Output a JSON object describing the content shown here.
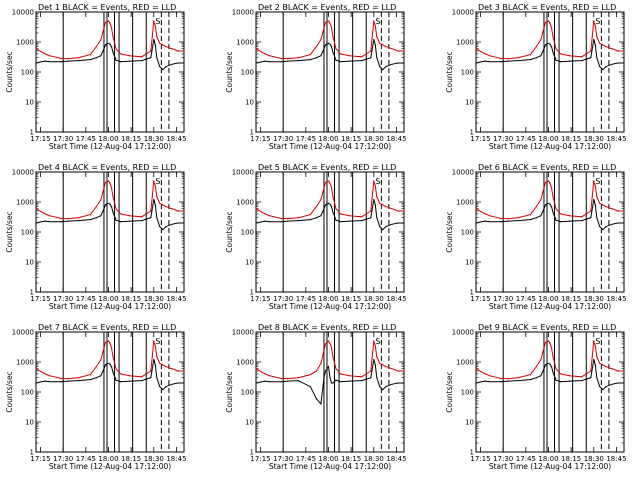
{
  "chart_data": {
    "type": "line",
    "layout": {
      "rows": 3,
      "cols": 3
    },
    "xlabel": "Start Time (12-Aug-04 17:12:00)",
    "ylabel": "Counts/sec",
    "yscale": "log",
    "ylim": [
      1,
      10000
    ],
    "xlim": [
      "17:12",
      "18:50"
    ],
    "x_tick_labels": [
      "17:15",
      "17:30",
      "17:45",
      "18:00",
      "18:15",
      "18:30",
      "18:45"
    ],
    "y_tick_labels": [
      "1",
      "10",
      "100",
      "1000",
      "10000"
    ],
    "y_tick_values": [
      1,
      10,
      100,
      1000,
      10000
    ],
    "legend_text": "BLACK = Events, RED = LLD",
    "colors": {
      "events": "#000000",
      "lld": "#d40000"
    },
    "solid_markers": [
      "17:30",
      "17:57",
      "17:59",
      "18:04",
      "18:07",
      "18:16",
      "18:25"
    ],
    "dashed_markers": [
      "18:35",
      "18:40"
    ],
    "shared_series_x": [
      "17:12",
      "17:18",
      "17:21",
      "17:29",
      "17:33",
      "17:40",
      "17:48",
      "17:52",
      "17:55",
      "17:57",
      "17:58",
      "18:00",
      "18:01",
      "18:02",
      "18:03",
      "18:05",
      "18:08",
      "18:14",
      "18:22",
      "18:28",
      "18:30",
      "18:31",
      "18:32",
      "18:34",
      "18:36",
      "18:38",
      "18:42",
      "18:46",
      "18:50"
    ],
    "panels": [
      {
        "title": "Det 1",
        "marker_letter": "S",
        "events": [
          200,
          230,
          220,
          220,
          230,
          240,
          260,
          300,
          350,
          600,
          800,
          900,
          850,
          700,
          450,
          250,
          220,
          230,
          240,
          300,
          1200,
          800,
          300,
          150,
          120,
          150,
          180,
          200,
          200
        ],
        "lld": [
          600,
          400,
          350,
          280,
          280,
          300,
          380,
          700,
          1200,
          3000,
          4500,
          5000,
          4200,
          3000,
          1500,
          600,
          400,
          350,
          320,
          500,
          5000,
          3500,
          1500,
          900,
          800,
          700,
          600,
          500,
          500
        ]
      },
      {
        "title": "Det 2",
        "marker_letter": "S",
        "events": [
          200,
          230,
          220,
          220,
          230,
          240,
          260,
          300,
          350,
          600,
          800,
          900,
          850,
          700,
          450,
          250,
          220,
          230,
          240,
          300,
          1200,
          800,
          300,
          150,
          120,
          150,
          180,
          200,
          200
        ],
        "lld": [
          600,
          400,
          350,
          280,
          280,
          300,
          380,
          700,
          1200,
          3000,
          4500,
          5000,
          4200,
          3000,
          1500,
          600,
          400,
          350,
          320,
          500,
          5000,
          3500,
          1500,
          900,
          800,
          700,
          600,
          500,
          500
        ]
      },
      {
        "title": "Det 3",
        "marker_letter": "S",
        "events": [
          200,
          230,
          220,
          220,
          230,
          240,
          260,
          300,
          350,
          600,
          800,
          900,
          850,
          700,
          450,
          250,
          220,
          230,
          240,
          300,
          1200,
          800,
          300,
          150,
          120,
          150,
          180,
          200,
          200
        ],
        "lld": [
          600,
          400,
          350,
          280,
          280,
          300,
          380,
          700,
          1200,
          3000,
          4500,
          5000,
          4200,
          3000,
          1500,
          600,
          400,
          350,
          320,
          500,
          5000,
          3500,
          1500,
          900,
          800,
          700,
          600,
          500,
          500
        ]
      },
      {
        "title": "Det 4",
        "marker_letter": "S",
        "events": [
          200,
          230,
          220,
          220,
          230,
          240,
          260,
          300,
          350,
          600,
          800,
          900,
          850,
          700,
          450,
          250,
          220,
          230,
          240,
          300,
          1200,
          800,
          300,
          150,
          120,
          150,
          180,
          200,
          200
        ],
        "lld": [
          600,
          400,
          350,
          280,
          280,
          300,
          380,
          700,
          1200,
          3000,
          4500,
          5000,
          4200,
          3000,
          1500,
          600,
          400,
          350,
          320,
          500,
          5000,
          3500,
          1500,
          900,
          800,
          700,
          600,
          500,
          500
        ]
      },
      {
        "title": "Det 5",
        "marker_letter": "S",
        "events": [
          200,
          230,
          220,
          220,
          230,
          240,
          260,
          300,
          350,
          600,
          800,
          900,
          850,
          700,
          450,
          250,
          220,
          230,
          240,
          300,
          1200,
          800,
          300,
          150,
          120,
          150,
          180,
          200,
          200
        ],
        "lld": [
          600,
          400,
          350,
          280,
          280,
          300,
          380,
          700,
          1200,
          3000,
          4500,
          5000,
          4200,
          3000,
          1500,
          600,
          400,
          350,
          320,
          500,
          5000,
          3500,
          1500,
          900,
          800,
          700,
          600,
          500,
          500
        ]
      },
      {
        "title": "Det 6",
        "marker_letter": "S",
        "events": [
          200,
          230,
          220,
          220,
          230,
          240,
          260,
          300,
          350,
          600,
          800,
          900,
          850,
          700,
          450,
          250,
          220,
          230,
          240,
          300,
          1200,
          800,
          300,
          150,
          120,
          150,
          180,
          200,
          200
        ],
        "lld": [
          600,
          400,
          350,
          280,
          280,
          300,
          380,
          700,
          1200,
          3000,
          4500,
          5000,
          4200,
          3000,
          1500,
          600,
          400,
          350,
          320,
          500,
          5000,
          3500,
          1500,
          900,
          800,
          700,
          600,
          500,
          500
        ]
      },
      {
        "title": "Det 7",
        "marker_letter": "S",
        "events": [
          200,
          230,
          220,
          220,
          230,
          240,
          260,
          300,
          350,
          600,
          800,
          900,
          850,
          700,
          450,
          250,
          220,
          230,
          240,
          300,
          1200,
          800,
          300,
          150,
          120,
          150,
          180,
          200,
          200
        ],
        "lld": [
          600,
          400,
          350,
          280,
          280,
          300,
          380,
          700,
          1200,
          3000,
          4500,
          5000,
          4200,
          3000,
          1500,
          600,
          400,
          350,
          320,
          500,
          5000,
          3500,
          1500,
          900,
          800,
          700,
          600,
          500,
          500
        ]
      },
      {
        "title": "Det 8",
        "marker_letter": "S",
        "events": [
          200,
          230,
          220,
          220,
          230,
          240,
          150,
          60,
          40,
          300,
          500,
          700,
          300,
          200,
          200,
          250,
          220,
          230,
          240,
          300,
          1200,
          800,
          300,
          150,
          120,
          150,
          180,
          200,
          200
        ],
        "lld": [
          600,
          400,
          350,
          280,
          280,
          300,
          380,
          500,
          900,
          2500,
          4000,
          5000,
          4200,
          3000,
          1500,
          600,
          400,
          350,
          320,
          500,
          5000,
          3500,
          1500,
          900,
          800,
          700,
          600,
          500,
          500
        ]
      },
      {
        "title": "Det 9",
        "marker_letter": "S",
        "events": [
          200,
          230,
          220,
          220,
          230,
          240,
          260,
          300,
          350,
          600,
          800,
          900,
          850,
          700,
          450,
          250,
          220,
          230,
          240,
          300,
          1200,
          800,
          300,
          150,
          120,
          150,
          180,
          200,
          200
        ],
        "lld": [
          600,
          400,
          350,
          280,
          280,
          300,
          380,
          700,
          1200,
          3000,
          4500,
          5000,
          4200,
          3000,
          1500,
          600,
          400,
          350,
          320,
          500,
          5000,
          3500,
          1500,
          900,
          800,
          700,
          600,
          500,
          500
        ]
      }
    ]
  }
}
